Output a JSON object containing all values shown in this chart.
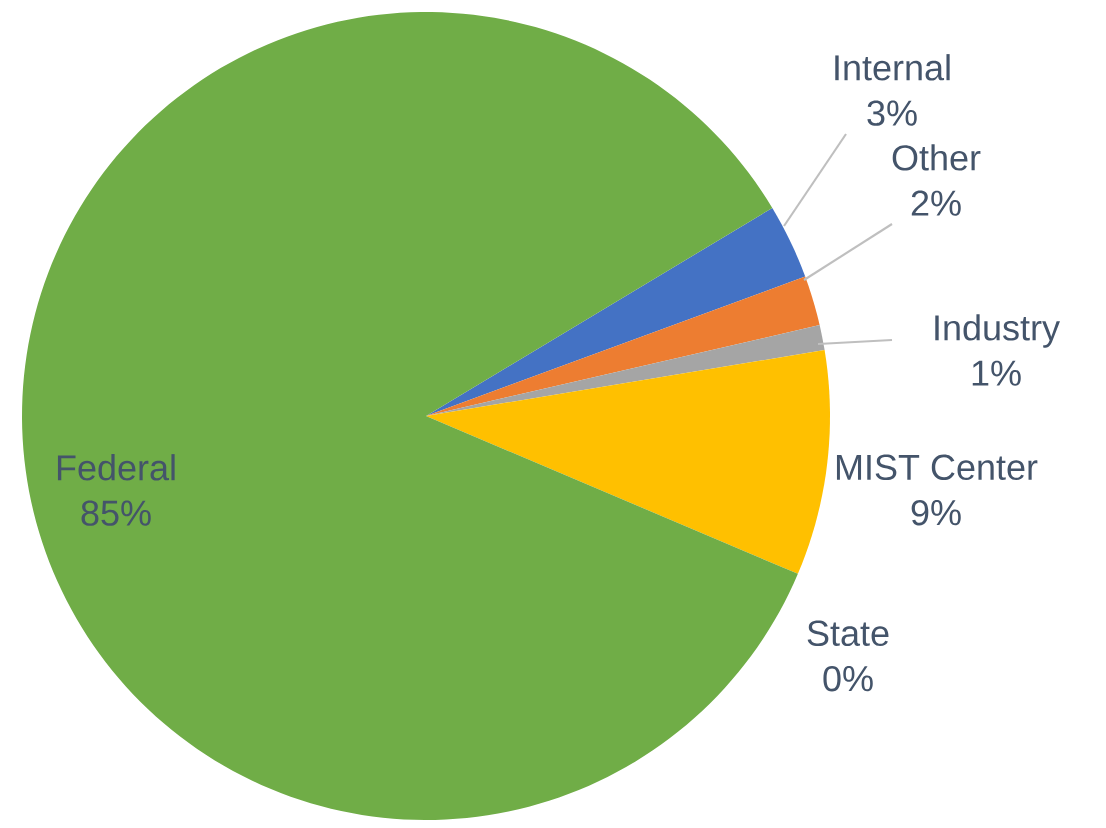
{
  "chart_data": {
    "type": "pie",
    "categories": [
      "Internal",
      "Other",
      "Industry",
      "MIST Center",
      "State",
      "Federal"
    ],
    "values": [
      3,
      2,
      1,
      9,
      0,
      85
    ],
    "value_labels": [
      "3%",
      "2%",
      "1%",
      "9%",
      "0%",
      "85%"
    ],
    "colors": [
      "#4472c4",
      "#ed7d31",
      "#a5a5a5",
      "#ffc000",
      "#5b9bd5",
      "#70ad47"
    ]
  }
}
